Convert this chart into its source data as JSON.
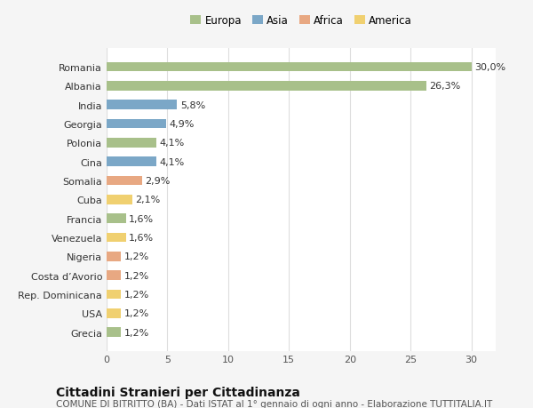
{
  "countries": [
    "Grecia",
    "USA",
    "Rep. Dominicana",
    "Costa d’Avorio",
    "Nigeria",
    "Venezuela",
    "Francia",
    "Cuba",
    "Somalia",
    "Cina",
    "Polonia",
    "Georgia",
    "India",
    "Albania",
    "Romania"
  ],
  "values": [
    1.2,
    1.2,
    1.2,
    1.2,
    1.2,
    1.6,
    1.6,
    2.1,
    2.9,
    4.1,
    4.1,
    4.9,
    5.8,
    26.3,
    30.0
  ],
  "labels": [
    "1,2%",
    "1,2%",
    "1,2%",
    "1,2%",
    "1,2%",
    "1,6%",
    "1,6%",
    "2,1%",
    "2,9%",
    "4,1%",
    "4,1%",
    "4,9%",
    "5,8%",
    "26,3%",
    "30,0%"
  ],
  "continents": [
    "Europa",
    "America",
    "America",
    "Africa",
    "Africa",
    "America",
    "Europa",
    "America",
    "Africa",
    "Asia",
    "Europa",
    "Asia",
    "Asia",
    "Europa",
    "Europa"
  ],
  "continent_colors": {
    "Europa": "#a8c08a",
    "Asia": "#7ba7c7",
    "Africa": "#e8a882",
    "America": "#f0d070"
  },
  "legend_order": [
    "Europa",
    "Asia",
    "Africa",
    "America"
  ],
  "title": "Cittadini Stranieri per Cittadinanza",
  "subtitle": "COMUNE DI BITRITTO (BA) - Dati ISTAT al 1° gennaio di ogni anno - Elaborazione TUTTITALIA.IT",
  "xlim": [
    0,
    32
  ],
  "xticks": [
    0,
    5,
    10,
    15,
    20,
    25,
    30
  ],
  "background_color": "#f5f5f5",
  "bar_background": "#ffffff",
  "grid_color": "#dddddd",
  "title_fontsize": 10,
  "subtitle_fontsize": 7.5,
  "label_fontsize": 8,
  "tick_fontsize": 8
}
